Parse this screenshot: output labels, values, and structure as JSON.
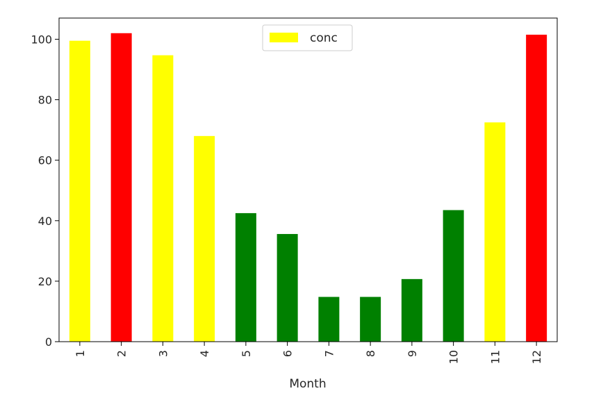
{
  "chart_data": {
    "type": "bar",
    "title": "",
    "xlabel": "Month",
    "ylabel": "",
    "categories": [
      "1",
      "2",
      "3",
      "4",
      "5",
      "6",
      "7",
      "8",
      "9",
      "10",
      "11",
      "12"
    ],
    "series": [
      {
        "name": "conc",
        "values": [
          99.5,
          102,
          94.7,
          68,
          42.5,
          35.6,
          14.8,
          14.8,
          20.7,
          43.5,
          72.5,
          101.5
        ]
      }
    ],
    "bar_colors": [
      "#ffff00",
      "#ff0000",
      "#ffff00",
      "#ffff00",
      "#008000",
      "#008000",
      "#008000",
      "#008000",
      "#008000",
      "#008000",
      "#ffff00",
      "#ff0000"
    ],
    "legend_swatch_color": "#ffff00",
    "ylim": [
      0,
      107
    ],
    "yticks": [
      0,
      20,
      40,
      60,
      80,
      100
    ],
    "xtick_rotation": "vertical",
    "legend_position": "top-center",
    "grid": false
  }
}
